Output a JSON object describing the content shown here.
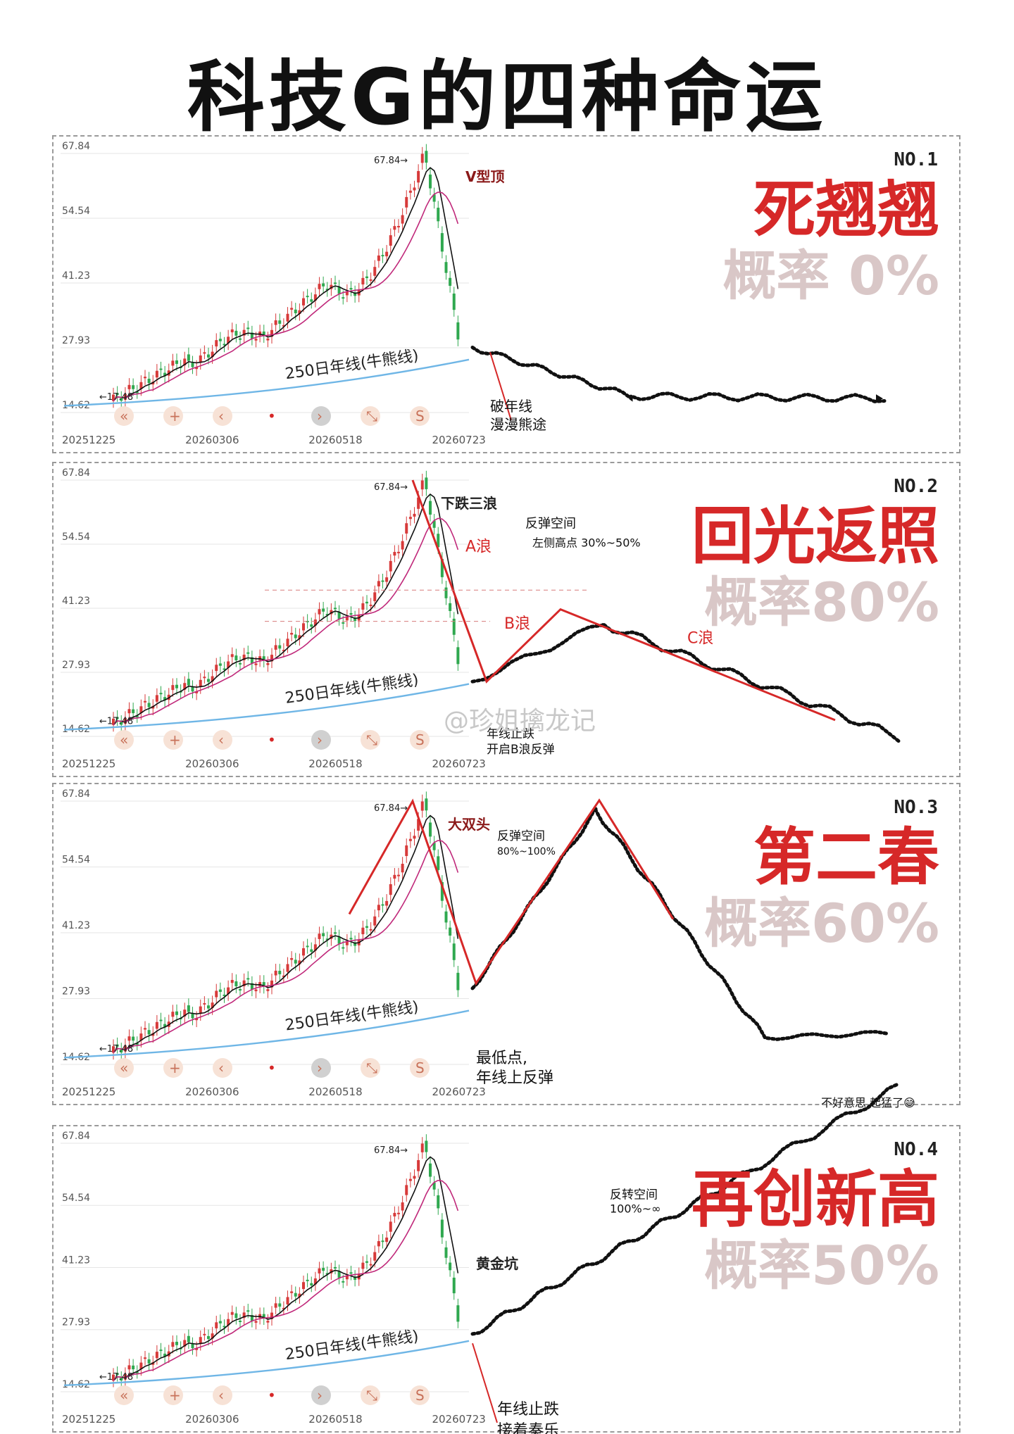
{
  "title": "科技G的四种命运",
  "watermark": "@珍姐擒龙记",
  "colors": {
    "candle_up": "#d73a3a",
    "candle_down": "#2fa84f",
    "ma_short": "#111111",
    "ma_mid": "#c0287a",
    "ma_250": "#6fb6e6",
    "annot": "#d62828",
    "fate": "#d62828",
    "prob": "#d9c7c7"
  },
  "base_chart": {
    "y_ticks": [
      "67.84",
      "54.54",
      "41.23",
      "27.93",
      "14.62"
    ],
    "x_ticks": [
      "20251225",
      "20260306",
      "20260518",
      "20260723"
    ],
    "high_label": "67.84",
    "low_label": "17.48",
    "ma_label": "250日年线(牛熊线)",
    "toolbar_icons": [
      "double-left-icon",
      "plus-icon",
      "chevron-left-icon",
      "dot-icon",
      "chevron-right-icon",
      "expand-icon",
      "s-icon"
    ],
    "toolbar_s": "S"
  },
  "panels": [
    {
      "no": "NO.1",
      "fate": "死翘翘",
      "prob": "概率 0%",
      "labels": [
        {
          "text": "V型顶",
          "color": "#8b1a1a",
          "kind": "print"
        }
      ],
      "notes": [
        {
          "text": "破年线",
          "kind": "hand"
        },
        {
          "text": "漫漫熊途",
          "kind": "hand"
        }
      ]
    },
    {
      "no": "NO.2",
      "fate": "回光返照",
      "prob": "概率80%",
      "labels": [
        {
          "text": "下跌三浪",
          "color": "#222222",
          "kind": "print"
        },
        {
          "text": "A浪",
          "color": "#d62828",
          "kind": "hand"
        },
        {
          "text": "B浪",
          "color": "#d62828",
          "kind": "hand"
        },
        {
          "text": "C浪",
          "color": "#d62828",
          "kind": "hand"
        }
      ],
      "notes": [
        {
          "text": "反弹空间",
          "kind": "hand"
        },
        {
          "text": "左侧高点 30%~50%",
          "kind": "hand"
        },
        {
          "text": "年线止跌",
          "kind": "hand"
        },
        {
          "text": "开启B浪反弹",
          "kind": "hand"
        }
      ]
    },
    {
      "no": "NO.3",
      "fate": "第二春",
      "prob": "概率60%",
      "labels": [
        {
          "text": "大双头",
          "color": "#8b1a1a",
          "kind": "print"
        }
      ],
      "notes": [
        {
          "text": "反弹空间",
          "kind": "hand"
        },
        {
          "text": "80%~100%",
          "kind": "hand"
        },
        {
          "text": "最低点,",
          "kind": "hand"
        },
        {
          "text": "年线上反弹",
          "kind": "hand"
        }
      ]
    },
    {
      "no": "NO.4",
      "fate": "再创新高",
      "prob": "概率50%",
      "labels": [
        {
          "text": "黄金坑",
          "color": "#222222",
          "kind": "print"
        }
      ],
      "notes": [
        {
          "text": "反转空间",
          "kind": "hand"
        },
        {
          "text": "100%~∞",
          "kind": "hand"
        },
        {
          "text": "年线止跌",
          "kind": "hand"
        },
        {
          "text": "接着奏乐",
          "kind": "hand"
        },
        {
          "text": "不好意思,起猛了😅",
          "kind": "hand"
        }
      ]
    }
  ]
}
